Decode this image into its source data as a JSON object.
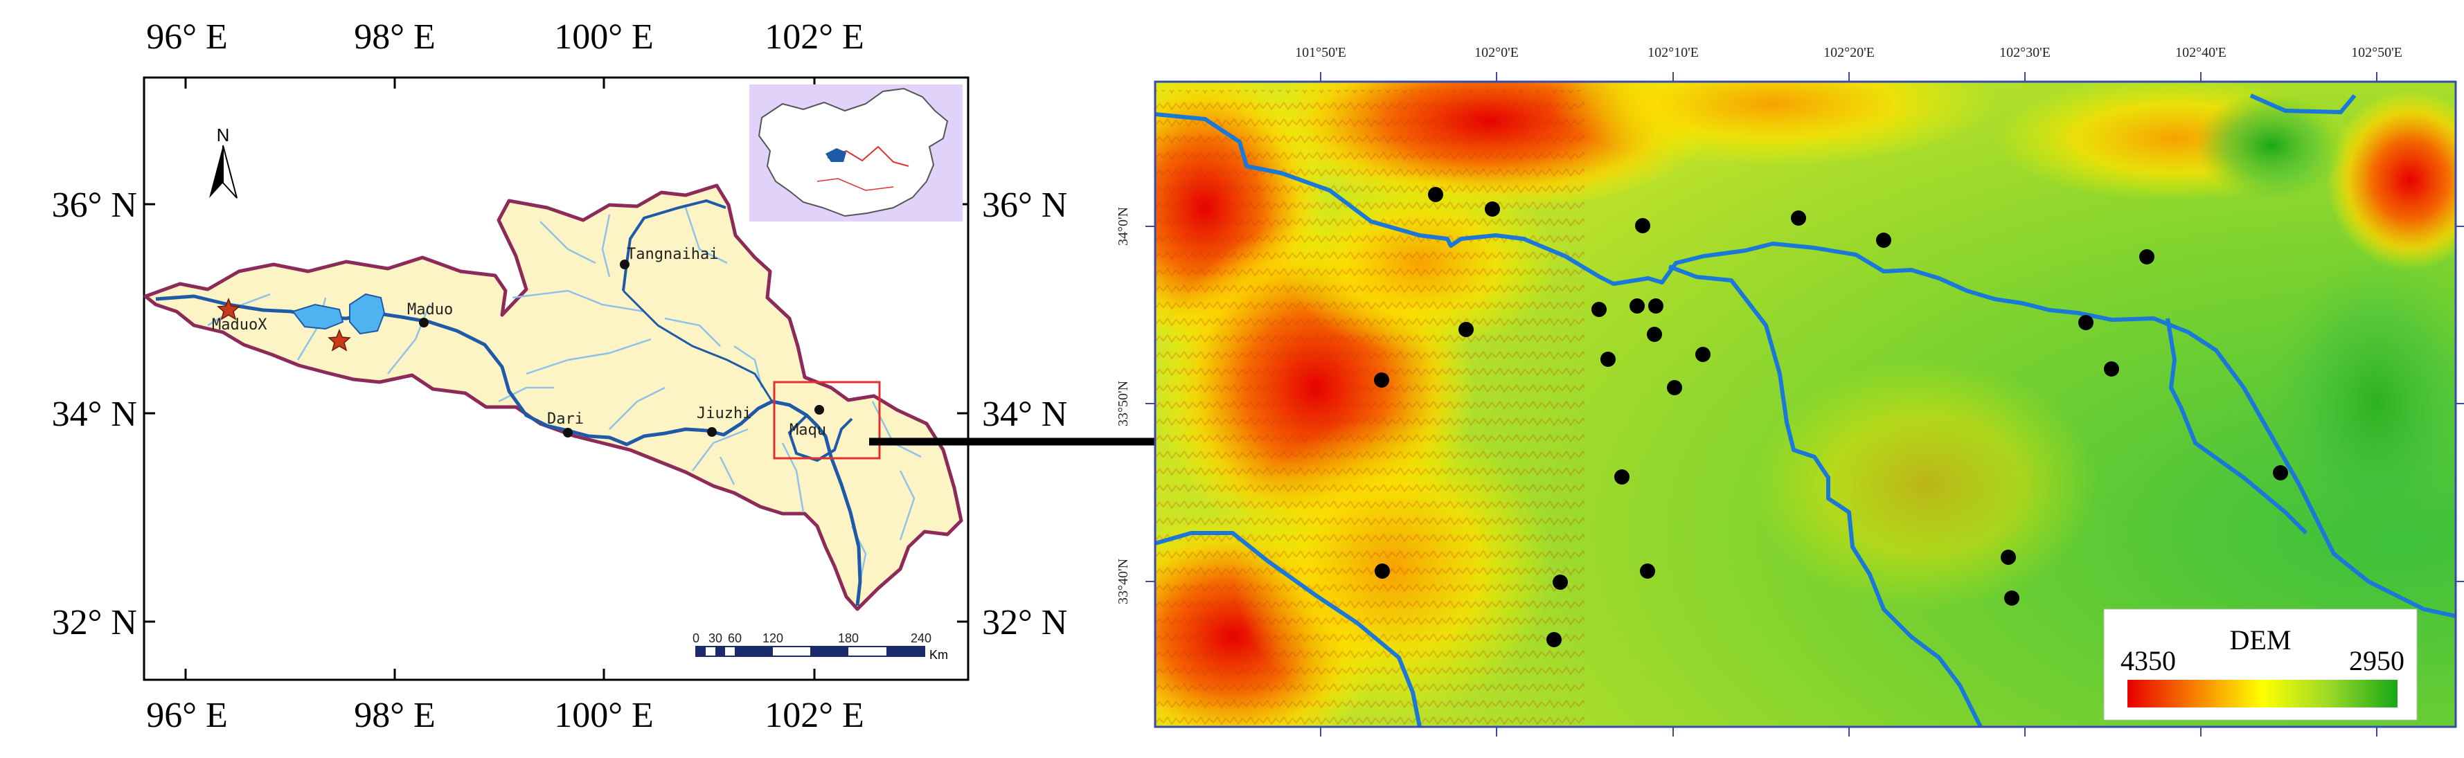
{
  "left_map": {
    "lon_labels": [
      "96° E",
      "98° E",
      "100° E",
      "102° E"
    ],
    "lat_labels_left": [
      "36° N",
      "34° N",
      "32° N"
    ],
    "lat_labels_right": [
      "36° N",
      "34° N",
      "32° N"
    ],
    "bottom_labels": [
      "96° E",
      "98° E",
      "100° E",
      "102° E"
    ],
    "north_label": "N",
    "places": [
      {
        "name": "MaduoX",
        "type": "star"
      },
      {
        "name": "Maduo",
        "type": "dot"
      },
      {
        "name": "Tangnaihai",
        "type": "dot"
      },
      {
        "name": "Dari",
        "type": "dot"
      },
      {
        "name": "Jiuzhi",
        "type": "dot"
      },
      {
        "name": "Maqu",
        "type": "dot"
      }
    ],
    "scale_bar": {
      "ticks": [
        "0",
        "30",
        "60",
        "120",
        "180",
        "240"
      ],
      "unit": "Km"
    },
    "colors": {
      "basin": "#fcf4c4",
      "boundary": "#8c2a5a",
      "river": "#1f5aa8",
      "tributary": "#8fc2ea",
      "lake": "#4fb3f0",
      "inset": "#e0d2f8",
      "box": "#e03030"
    }
  },
  "right_map": {
    "top_labels": [
      "101°50'E",
      "102°0'E",
      "102°10'E",
      "102°20'E",
      "102°30'E",
      "102°40'E",
      "102°50'E"
    ],
    "left_labels": [
      "34°0'N",
      "33°50'N",
      "33°40'N"
    ],
    "sites_count": 26,
    "legend": {
      "title": "DEM",
      "max_label": "4350",
      "min_label": "2950"
    },
    "colors": {
      "high": "#e60000",
      "mid": "#ffff00",
      "low": "#1aaa1a",
      "river": "#1a78d8",
      "site": "#000000"
    }
  }
}
